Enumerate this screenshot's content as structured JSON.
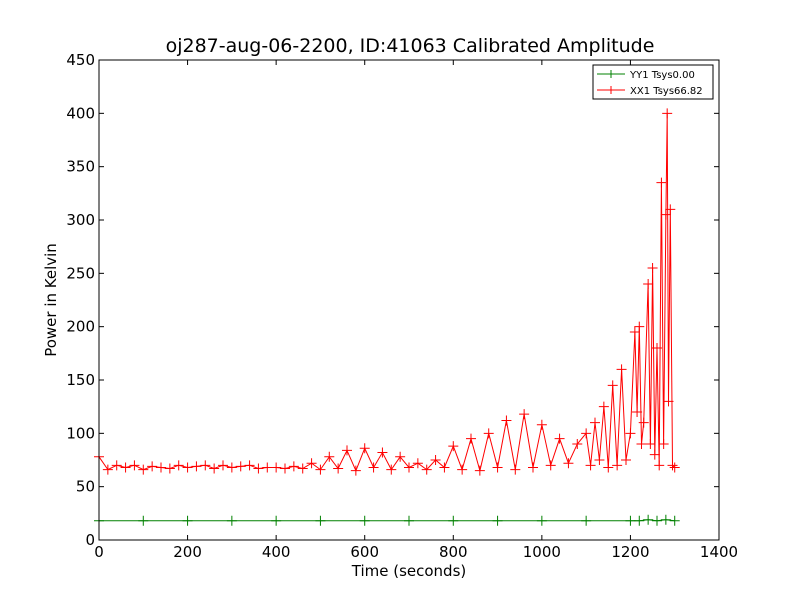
{
  "chart_data": {
    "type": "line",
    "title": "oj287-aug-06-2200, ID:41063 Calibrated Amplitude",
    "xlabel": "Time (seconds)",
    "ylabel": "Power in Kelvin",
    "xlim": [
      0,
      1400
    ],
    "ylim": [
      0,
      450
    ],
    "x_ticks": [
      "0",
      "200",
      "400",
      "600",
      "800",
      "1000",
      "1200",
      "1400"
    ],
    "y_ticks": [
      "0",
      "50",
      "100",
      "150",
      "200",
      "250",
      "300",
      "350",
      "400",
      "450"
    ],
    "legend_position": "top-right",
    "marker": "+",
    "series": [
      {
        "name": "YY1 Tsys0.00",
        "color": "#008000",
        "x": [
          0,
          100,
          200,
          300,
          400,
          500,
          600,
          700,
          800,
          900,
          1000,
          1100,
          1200,
          1220,
          1240,
          1260,
          1280,
          1300
        ],
        "y": [
          18,
          18,
          18,
          18,
          18,
          18,
          18,
          18,
          18,
          18,
          18,
          18,
          18,
          18,
          19,
          18,
          19,
          18
        ]
      },
      {
        "name": "XX1 Tsys66.82",
        "color": "#ff0000",
        "x": [
          0,
          20,
          40,
          60,
          80,
          100,
          120,
          140,
          160,
          180,
          200,
          220,
          240,
          260,
          280,
          300,
          320,
          340,
          360,
          380,
          400,
          420,
          440,
          460,
          480,
          500,
          520,
          540,
          560,
          580,
          600,
          620,
          640,
          660,
          680,
          700,
          720,
          740,
          760,
          780,
          800,
          820,
          840,
          860,
          880,
          900,
          920,
          940,
          960,
          980,
          1000,
          1020,
          1040,
          1060,
          1080,
          1100,
          1110,
          1120,
          1130,
          1140,
          1150,
          1160,
          1170,
          1180,
          1190,
          1200,
          1210,
          1215,
          1220,
          1225,
          1230,
          1240,
          1245,
          1250,
          1255,
          1260,
          1265,
          1270,
          1275,
          1280,
          1283,
          1286,
          1290,
          1295,
          1300
        ],
        "y": [
          78,
          66,
          70,
          68,
          70,
          66,
          69,
          68,
          67,
          70,
          68,
          69,
          70,
          67,
          70,
          68,
          69,
          70,
          67,
          68,
          68,
          67,
          69,
          67,
          72,
          66,
          78,
          67,
          84,
          65,
          86,
          68,
          82,
          66,
          78,
          68,
          72,
          66,
          75,
          68,
          88,
          66,
          95,
          65,
          100,
          68,
          112,
          66,
          118,
          68,
          108,
          70,
          95,
          72,
          90,
          100,
          70,
          110,
          75,
          125,
          68,
          145,
          70,
          160,
          75,
          100,
          195,
          120,
          200,
          90,
          110,
          240,
          90,
          255,
          80,
          180,
          70,
          335,
          90,
          305,
          400,
          130,
          310,
          70,
          68
        ]
      }
    ]
  }
}
